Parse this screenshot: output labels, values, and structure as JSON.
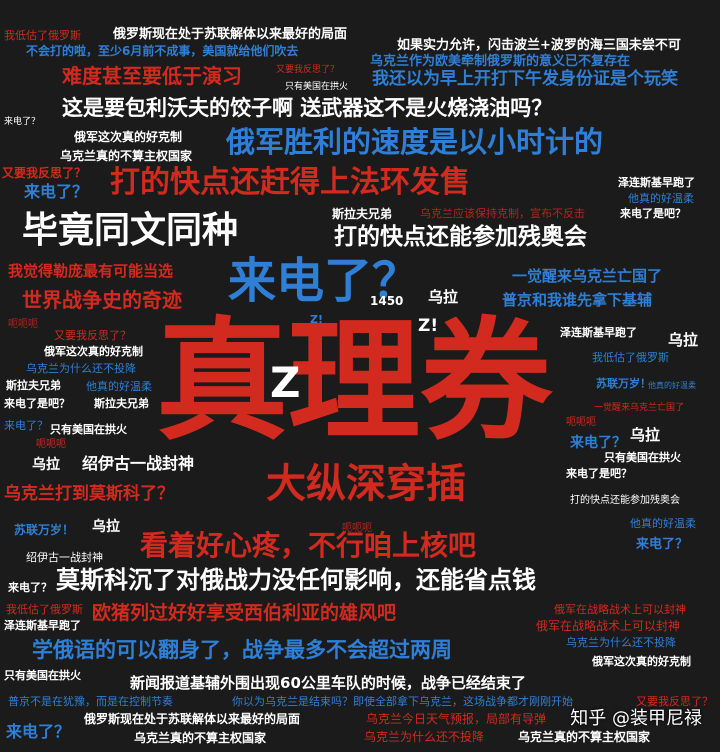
{
  "colors": {
    "background": "#1b1b1b",
    "red": "#d22a1e",
    "blue": "#2f7fd6",
    "white": "#ffffff"
  },
  "words": {
    "w01": "我低估了俄罗斯",
    "w02": "俄罗斯现在处于苏联解体以来最好的局面",
    "w03": "不会打的啦，至少6月前不成事，美国就给他们吹去",
    "w04": "如果实力允许，闪击波兰+波罗的海三国未尝不可",
    "w05": "乌克兰作为欧美牵制俄罗斯的意义已不复存在",
    "w06": "难度甚至要低于演习",
    "w07": "又要我反思了？",
    "w08": "我还以为早上开打下午发身份证是个玩笑",
    "w09": "只有美国在拱火",
    "w10": "这是要包利沃夫的饺子啊 送武器这不是火烧浇油吗？",
    "w11": "来电了？",
    "w12": "俄军这次真的好克制",
    "w13": "俄军胜利的速度是以小时计的",
    "w14": "乌克兰真的不算主权国家",
    "w15": "又要我反思了？",
    "w16": "打的快点还赶得上法环发售",
    "w17": "来电了？",
    "w18": "泽连斯基早跑了",
    "w19": "他真的好温柔",
    "w20": "毕竟同文同种",
    "w21": "斯拉夫兄弟",
    "w22": "乌克兰应该保持克制，宣布不反击",
    "w23": "来电了是吧？",
    "w24": "打的快点还能参加残奥会",
    "w25": "我觉得勒庞最有可能当选",
    "w26": "来电了？",
    "w27": "一觉醒来乌克兰亡国了",
    "w28": "世界战争史的奇迹",
    "w29": "1450",
    "w30": "乌拉",
    "w31": "普京和我谁先拿下基辅",
    "w32": "呃呃呃",
    "w33": "Z!",
    "w34": "Z!",
    "w35": "又要我反思了？",
    "w36": "泽连斯基早跑了",
    "w37": "乌拉",
    "w38": "真理券",
    "w39": "Z",
    "w40": "俄军这次真的好克制",
    "w41": "我低估了俄罗斯",
    "w42": "乌克兰为什么还不投降",
    "w43": "苏联万岁！",
    "w44": "他真的好温柔",
    "w45": "斯拉夫兄弟",
    "w46": "他真的好温柔",
    "w47": "来电了是吧？",
    "w48": "斯拉夫兄弟",
    "w49": "一觉醒来乌克兰亡国了",
    "w50": "呃呃呃",
    "w51": "来电了？",
    "w52": "只有美国在拱火",
    "w53": "呃呃呃",
    "w54": "乌拉",
    "w55": "来电了？",
    "w56": "乌拉",
    "w57": "绍伊古一战封神",
    "w58": "只有美国在拱火",
    "w59": "来电了是吧？",
    "w60": "大纵深穿插",
    "w61": "乌克兰打到莫斯科了？",
    "w62": "打的快点还能参加残奥会",
    "w63": "苏联万岁！",
    "w64": "乌拉",
    "w65": "呃呃呃",
    "w66": "他真的好温柔",
    "w67": "看着好心疼，不行咱上核吧",
    "w68": "来电了？",
    "w69": "绍伊古一战封神",
    "w70": "莫斯科沉了对俄战力没任何影响，还能省点钱",
    "w71": "来电了？",
    "w72": "我低估了俄罗斯",
    "w73": "欧猪列过好好享受西伯利亚的雄风吧",
    "w74": "俄军在战略战术上可以封神",
    "w75": "泽连斯基早跑了",
    "w76": "俄军在战略战术上可以封神",
    "w77": "学俄语的可以翻身了，战争最多不会超过两周",
    "w78": "乌克兰为什么还不投降",
    "w79": "只有美国在拱火",
    "w80": "俄军这次真的好克制",
    "w81": "新闻报道基辅外围出现60公里车队的时候，战争已经结束了",
    "w82": "普京不是在犹豫，而是在控制节奏",
    "w83": "你以为乌克兰是结束吗？即使全部拿下乌克兰，这场战争都才刚刚开始",
    "w84": "又要我反思了？",
    "w85": "来电了？",
    "w86": "俄罗斯现在处于苏联解体以来最好的局面",
    "w87": "乌克兰今日天气预报，局部有导弹",
    "w88": "乌克兰真的不算主权国家",
    "w89": "乌克兰为什么还不投降",
    "w90": "乌克兰真的不算主权国家",
    "w91": "知乎 @装甲尼禄"
  }
}
